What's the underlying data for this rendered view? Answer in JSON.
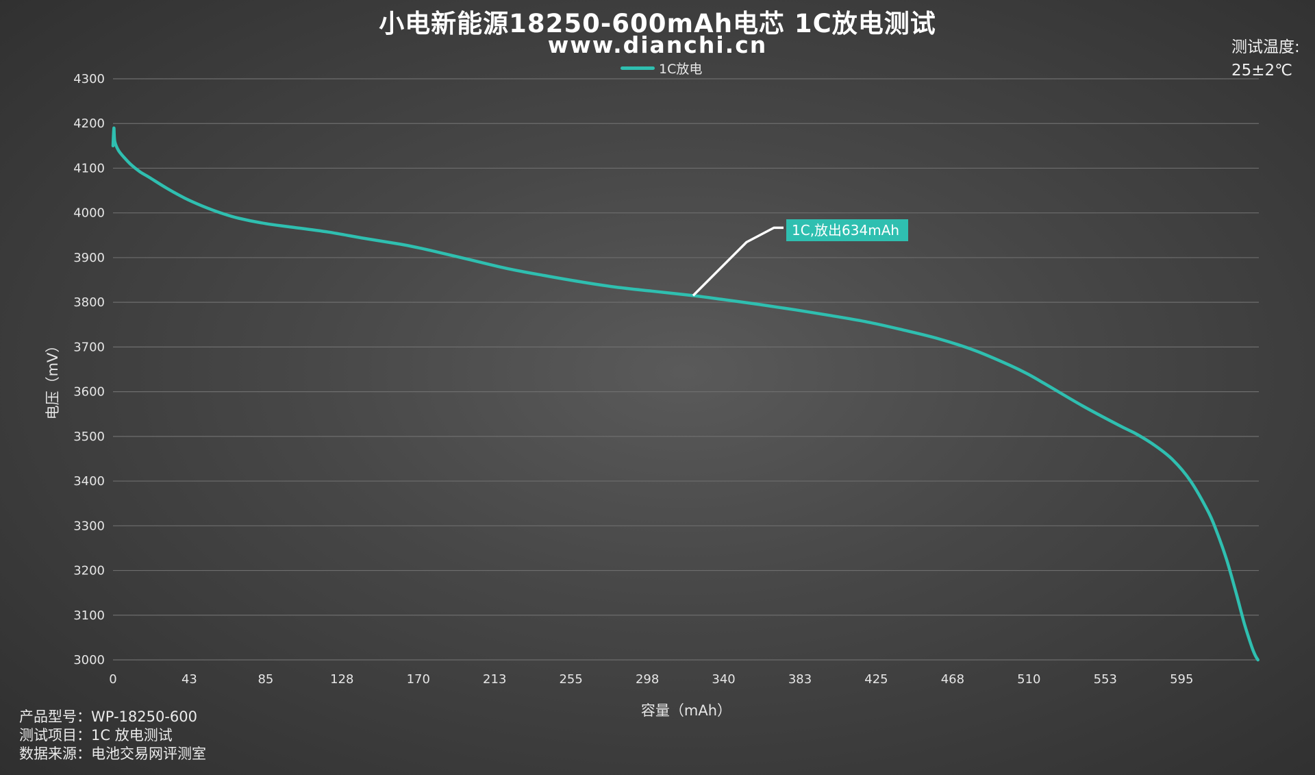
{
  "header": {
    "title": "小电新能源18250-600mAh电芯 1C放电测试",
    "subtitle": "www.dianchi.cn"
  },
  "temperature": {
    "label": "测试温度:",
    "value": "25±2℃"
  },
  "footer": {
    "lines": [
      "产品型号：WP-18250-600",
      "测试项目：1C 放电测试",
      "数据来源：电池交易网评测室"
    ]
  },
  "colors": {
    "series": "#2fbfb0",
    "callout_bg": "#2fbfb0",
    "grid": "#6e6e6e"
  },
  "chart_data": {
    "type": "line",
    "xlabel": "容量（mAh）",
    "ylabel": "电压（mV）",
    "xlim": [
      0,
      638
    ],
    "ylim": [
      3000,
      4300
    ],
    "x_ticks": [
      "0",
      "43",
      "85",
      "128",
      "170",
      "213",
      "255",
      "298",
      "340",
      "383",
      "425",
      "468",
      "510",
      "553",
      "595"
    ],
    "x_tick_values": [
      0,
      42.5,
      85,
      127.5,
      170,
      212.5,
      255,
      297.5,
      340,
      382.5,
      425,
      467.5,
      510,
      552.5,
      595
    ],
    "y_ticks": [
      3000,
      3100,
      3200,
      3300,
      3400,
      3500,
      3600,
      3700,
      3800,
      3900,
      4000,
      4100,
      4200,
      4300
    ],
    "grid": true,
    "legend_position": "top-center",
    "series": [
      {
        "name": "1C放电",
        "x": [
          0,
          0.5,
          1,
          3,
          6,
          10,
          15,
          20,
          30,
          40,
          50,
          60,
          70,
          85,
          100,
          120,
          140,
          160,
          170,
          180,
          200,
          220,
          240,
          260,
          280,
          300,
          323,
          340,
          360,
          380,
          400,
          420,
          440,
          460,
          480,
          500,
          510,
          520,
          540,
          560,
          570,
          580,
          590,
          600,
          610,
          615,
          620,
          625,
          630,
          634,
          636,
          637.5
        ],
        "y": [
          4150,
          4190,
          4160,
          4140,
          4125,
          4108,
          4092,
          4080,
          4055,
          4033,
          4015,
          4000,
          3988,
          3976,
          3968,
          3957,
          3943,
          3930,
          3922,
          3913,
          3894,
          3875,
          3860,
          3846,
          3834,
          3825,
          3815,
          3806,
          3795,
          3783,
          3770,
          3756,
          3738,
          3718,
          3692,
          3658,
          3638,
          3615,
          3568,
          3525,
          3505,
          3480,
          3448,
          3400,
          3330,
          3282,
          3225,
          3155,
          3080,
          3030,
          3010,
          3000
        ]
      }
    ],
    "annotation": {
      "text": "1C,放出634mAh",
      "x": 323,
      "y": 3815
    }
  }
}
